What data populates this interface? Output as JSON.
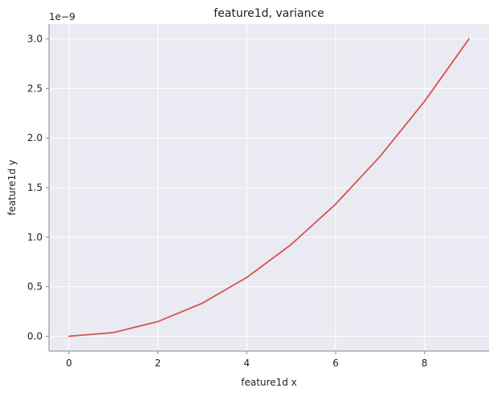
{
  "chart_data": {
    "type": "line",
    "title": "feature1d, variance",
    "xlabel": "feature1d x",
    "ylabel": "feature1d y",
    "y_offset_label": "1e−9",
    "xlim": [
      -0.45,
      9.45
    ],
    "ylim": [
      -0.15,
      3.15
    ],
    "x_ticks": [
      0,
      2,
      4,
      6,
      8
    ],
    "x_tick_labels": [
      "0",
      "2",
      "4",
      "6",
      "8"
    ],
    "y_ticks": [
      0.0,
      0.5,
      1.0,
      1.5,
      2.0,
      2.5,
      3.0
    ],
    "y_tick_labels": [
      "0.0",
      "0.5",
      "1.0",
      "1.5",
      "2.0",
      "2.5",
      "3.0"
    ],
    "grid": true,
    "series": [
      {
        "x": [
          0,
          1,
          2,
          3,
          4,
          5,
          6,
          7,
          8,
          9
        ],
        "y": [
          0.0,
          0.037,
          0.148,
          0.333,
          0.593,
          0.926,
          1.333,
          1.815,
          2.37,
          3.0
        ],
        "color": "#d9534f"
      }
    ],
    "background_color": "#eaeaf2",
    "grid_color": "#ffffff",
    "axis_color": "#888888"
  }
}
